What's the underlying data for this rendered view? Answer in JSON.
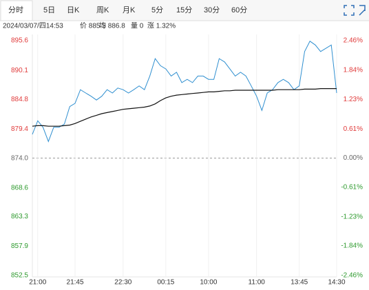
{
  "tabs": [
    "分时",
    "5日",
    "日K",
    "周K",
    "月K",
    "5分",
    "15分",
    "30分",
    "60分"
  ],
  "info": [
    "2024/03/07/四14:53",
    "价 885.5",
    "均 886.8",
    "量 0",
    "涨 1.32%"
  ],
  "chart_data": {
    "type": "line",
    "categories": [
      null,
      "21:00",
      null,
      null,
      null,
      null,
      null,
      null,
      "21:45",
      null,
      null,
      null,
      null,
      null,
      null,
      null,
      null,
      "22:30",
      null,
      null,
      null,
      null,
      null,
      null,
      null,
      "00:15",
      null,
      null,
      null,
      null,
      null,
      null,
      null,
      "10:00",
      null,
      null,
      null,
      null,
      null,
      null,
      null,
      null,
      "11:00",
      null,
      null,
      null,
      null,
      null,
      null,
      null,
      "13:45",
      null,
      null,
      null,
      null,
      null,
      null,
      "14:30"
    ],
    "series": [
      {
        "color": "#2f8fd0",
        "values": [
          878.4,
          880.9,
          879.7,
          877.1,
          879.7,
          879.7,
          880.3,
          883.5,
          884.1,
          886.6,
          886.0,
          885.4,
          884.7,
          885.4,
          886.6,
          886.0,
          886.9,
          886.6,
          886.0,
          886.6,
          887.3,
          886.6,
          889.1,
          892.3,
          891.0,
          890.4,
          889.1,
          889.8,
          887.9,
          888.5,
          887.9,
          889.1,
          889.1,
          888.5,
          888.5,
          892.3,
          891.7,
          890.4,
          889.1,
          889.8,
          889.1,
          887.3,
          885.4,
          882.8,
          886.0,
          886.6,
          887.9,
          888.5,
          887.9,
          886.6,
          887.3,
          893.6,
          895.5,
          894.8,
          893.6,
          894.2,
          894.8,
          886.0
        ]
      },
      {
        "color": "#111111",
        "values": [
          879.9,
          880.0,
          880.0,
          879.9,
          879.9,
          879.9,
          880.0,
          880.1,
          880.4,
          880.8,
          881.2,
          881.6,
          881.9,
          882.2,
          882.4,
          882.6,
          882.8,
          883.0,
          883.1,
          883.2,
          883.3,
          883.4,
          883.6,
          884.0,
          884.6,
          885.1,
          885.4,
          885.6,
          885.7,
          885.8,
          885.9,
          886.0,
          886.1,
          886.2,
          886.2,
          886.3,
          886.4,
          886.4,
          886.5,
          886.5,
          886.5,
          886.5,
          886.5,
          886.5,
          886.5,
          886.5,
          886.6,
          886.6,
          886.6,
          886.6,
          886.6,
          886.7,
          886.7,
          886.7,
          886.8,
          886.8,
          886.8,
          886.8
        ]
      }
    ],
    "ylim": [
      852.5,
      895.6
    ],
    "yticks": [
      895.6,
      890.1,
      884.8,
      879.4,
      {
        "value": 874,
        "label": "874.0"
      },
      868.6,
      863.3,
      857.9,
      852.5
    ],
    "y2lim": [
      -2.46,
      2.46
    ],
    "y2ticks": [
      {
        "value": 2.46,
        "label": "2.46%"
      },
      {
        "value": 1.84,
        "label": "1.84%"
      },
      {
        "value": 1.23,
        "label": "1.23%"
      },
      {
        "value": 0.61,
        "label": "0.61%"
      },
      {
        "value": 0,
        "label": "0.00%"
      },
      {
        "value": -0.61,
        "label": "-0.61%"
      },
      {
        "value": -1.23,
        "label": "-1.23%"
      },
      {
        "value": -1.84,
        "label": "-1.84%"
      },
      {
        "value": -2.46,
        "label": "-2.46%"
      }
    ],
    "up_color": "#e03a3a",
    "down_color": "#2e9a2e",
    "flat_color": "#666666"
  }
}
